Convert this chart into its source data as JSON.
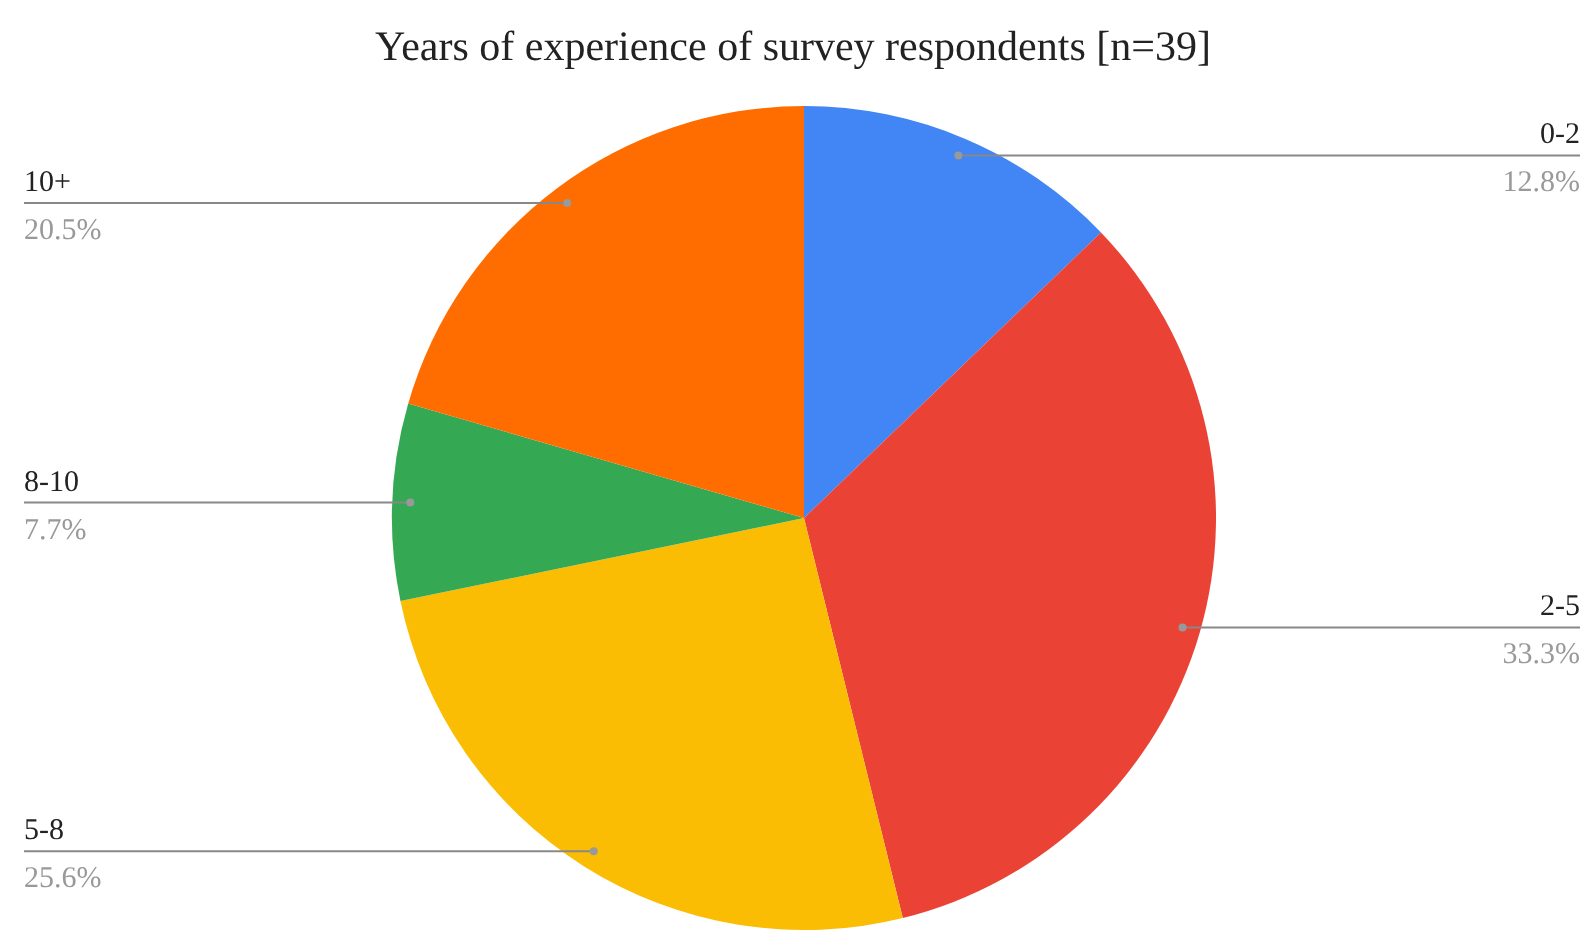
{
  "chart_data": {
    "type": "pie",
    "title": "Years of experience of survey respondents [n=39]",
    "categories": [
      "0-2",
      "2-5",
      "5-8",
      "8-10",
      "10+"
    ],
    "values": [
      12.8,
      33.3,
      25.6,
      7.7,
      20.5
    ],
    "colors": [
      "#4285f4",
      "#ea4335",
      "#fbbc04",
      "#34a853",
      "#ff6d01"
    ],
    "value_labels": [
      "12.8%",
      "33.3%",
      "25.6%",
      "7.7%",
      "20.5%"
    ],
    "legend": false
  }
}
